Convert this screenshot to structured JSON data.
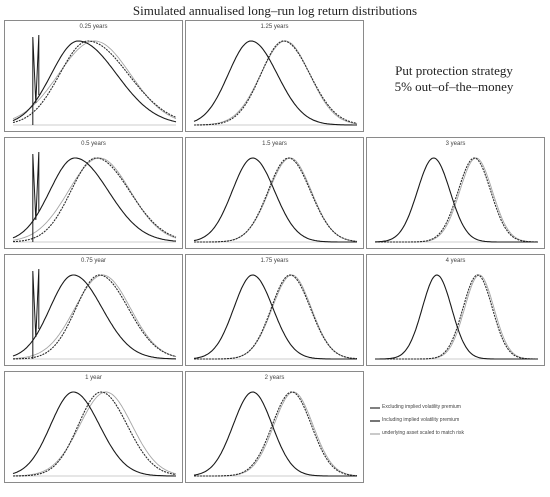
{
  "figure": {
    "title": "Simulated annualised long–run log return distributions",
    "strategy_line1": "Put protection strategy",
    "strategy_line2": "5% out–of–the–money"
  },
  "legend": [
    "Excluding implied volatility premium",
    "Including implied volatility premium",
    "underlying asset scaled to match risk"
  ],
  "colors": {
    "excluding": "#2b2b2b",
    "including": "#1a1a1a",
    "underlying": "#a6a6a6",
    "frame": "#8a8a8a"
  },
  "chart_data": [
    {
      "type": "line",
      "title": "0.25 years",
      "floor_spike": true,
      "series": [
        {
          "role": "excluding",
          "peak": 0.46,
          "spread": 0.21,
          "skew": 0.5
        },
        {
          "role": "including",
          "peak": 0.4,
          "spread": 0.2,
          "skew": 0.5
        },
        {
          "role": "underlying",
          "peak": 0.5,
          "spread": 0.22,
          "skew": 0.0
        }
      ]
    },
    {
      "type": "line",
      "title": "1.25 years",
      "series": [
        {
          "role": "excluding",
          "peak": 0.55,
          "spread": 0.15,
          "skew": 0.2
        },
        {
          "role": "including",
          "peak": 0.35,
          "spread": 0.15,
          "skew": 0.2
        },
        {
          "role": "underlying",
          "peak": 0.56,
          "spread": 0.15,
          "skew": 0.0
        }
      ]
    },
    {
      "type": "line",
      "title": "0.5 years",
      "floor_spike": true,
      "series": [
        {
          "role": "excluding",
          "peak": 0.51,
          "spread": 0.18,
          "skew": 0.4
        },
        {
          "role": "including",
          "peak": 0.38,
          "spread": 0.18,
          "skew": 0.4
        },
        {
          "role": "underlying",
          "peak": 0.53,
          "spread": 0.19,
          "skew": 0.0
        }
      ]
    },
    {
      "type": "line",
      "title": "1.5 years",
      "series": [
        {
          "role": "excluding",
          "peak": 0.58,
          "spread": 0.13,
          "skew": 0.1
        },
        {
          "role": "including",
          "peak": 0.36,
          "spread": 0.13,
          "skew": 0.1
        },
        {
          "role": "underlying",
          "peak": 0.59,
          "spread": 0.13,
          "skew": 0.0
        }
      ]
    },
    {
      "type": "line",
      "title": "3 years",
      "series": [
        {
          "role": "excluding",
          "peak": 0.61,
          "spread": 0.1,
          "skew": 0.0
        },
        {
          "role": "including",
          "peak": 0.36,
          "spread": 0.1,
          "skew": 0.0
        },
        {
          "role": "underlying",
          "peak": 0.62,
          "spread": 0.1,
          "skew": 0.0
        }
      ]
    },
    {
      "type": "line",
      "title": "0.75 year",
      "floor_spike": true,
      "series": [
        {
          "role": "excluding",
          "peak": 0.53,
          "spread": 0.16,
          "skew": 0.3
        },
        {
          "role": "including",
          "peak": 0.37,
          "spread": 0.16,
          "skew": 0.3
        },
        {
          "role": "underlying",
          "peak": 0.55,
          "spread": 0.17,
          "skew": 0.0
        }
      ]
    },
    {
      "type": "line",
      "title": "1.75 years",
      "series": [
        {
          "role": "excluding",
          "peak": 0.59,
          "spread": 0.12,
          "skew": 0.1
        },
        {
          "role": "including",
          "peak": 0.36,
          "spread": 0.12,
          "skew": 0.1
        },
        {
          "role": "underlying",
          "peak": 0.6,
          "spread": 0.12,
          "skew": 0.0
        }
      ]
    },
    {
      "type": "line",
      "title": "4 years",
      "series": [
        {
          "role": "excluding",
          "peak": 0.63,
          "spread": 0.09,
          "skew": 0.0
        },
        {
          "role": "including",
          "peak": 0.38,
          "spread": 0.09,
          "skew": 0.0
        },
        {
          "role": "underlying",
          "peak": 0.64,
          "spread": 0.09,
          "skew": 0.0
        }
      ]
    },
    {
      "type": "line",
      "title": "1 year",
      "series": [
        {
          "role": "excluding",
          "peak": 0.54,
          "spread": 0.15,
          "skew": 0.2
        },
        {
          "role": "including",
          "peak": 0.37,
          "spread": 0.15,
          "skew": 0.2
        },
        {
          "role": "underlying",
          "peak": 0.57,
          "spread": 0.16,
          "skew": 0.0
        }
      ]
    },
    {
      "type": "line",
      "title": "2 years",
      "series": [
        {
          "role": "excluding",
          "peak": 0.6,
          "spread": 0.12,
          "skew": 0.0
        },
        {
          "role": "including",
          "peak": 0.36,
          "spread": 0.12,
          "skew": 0.0
        },
        {
          "role": "underlying",
          "peak": 0.61,
          "spread": 0.12,
          "skew": 0.0
        }
      ]
    }
  ]
}
